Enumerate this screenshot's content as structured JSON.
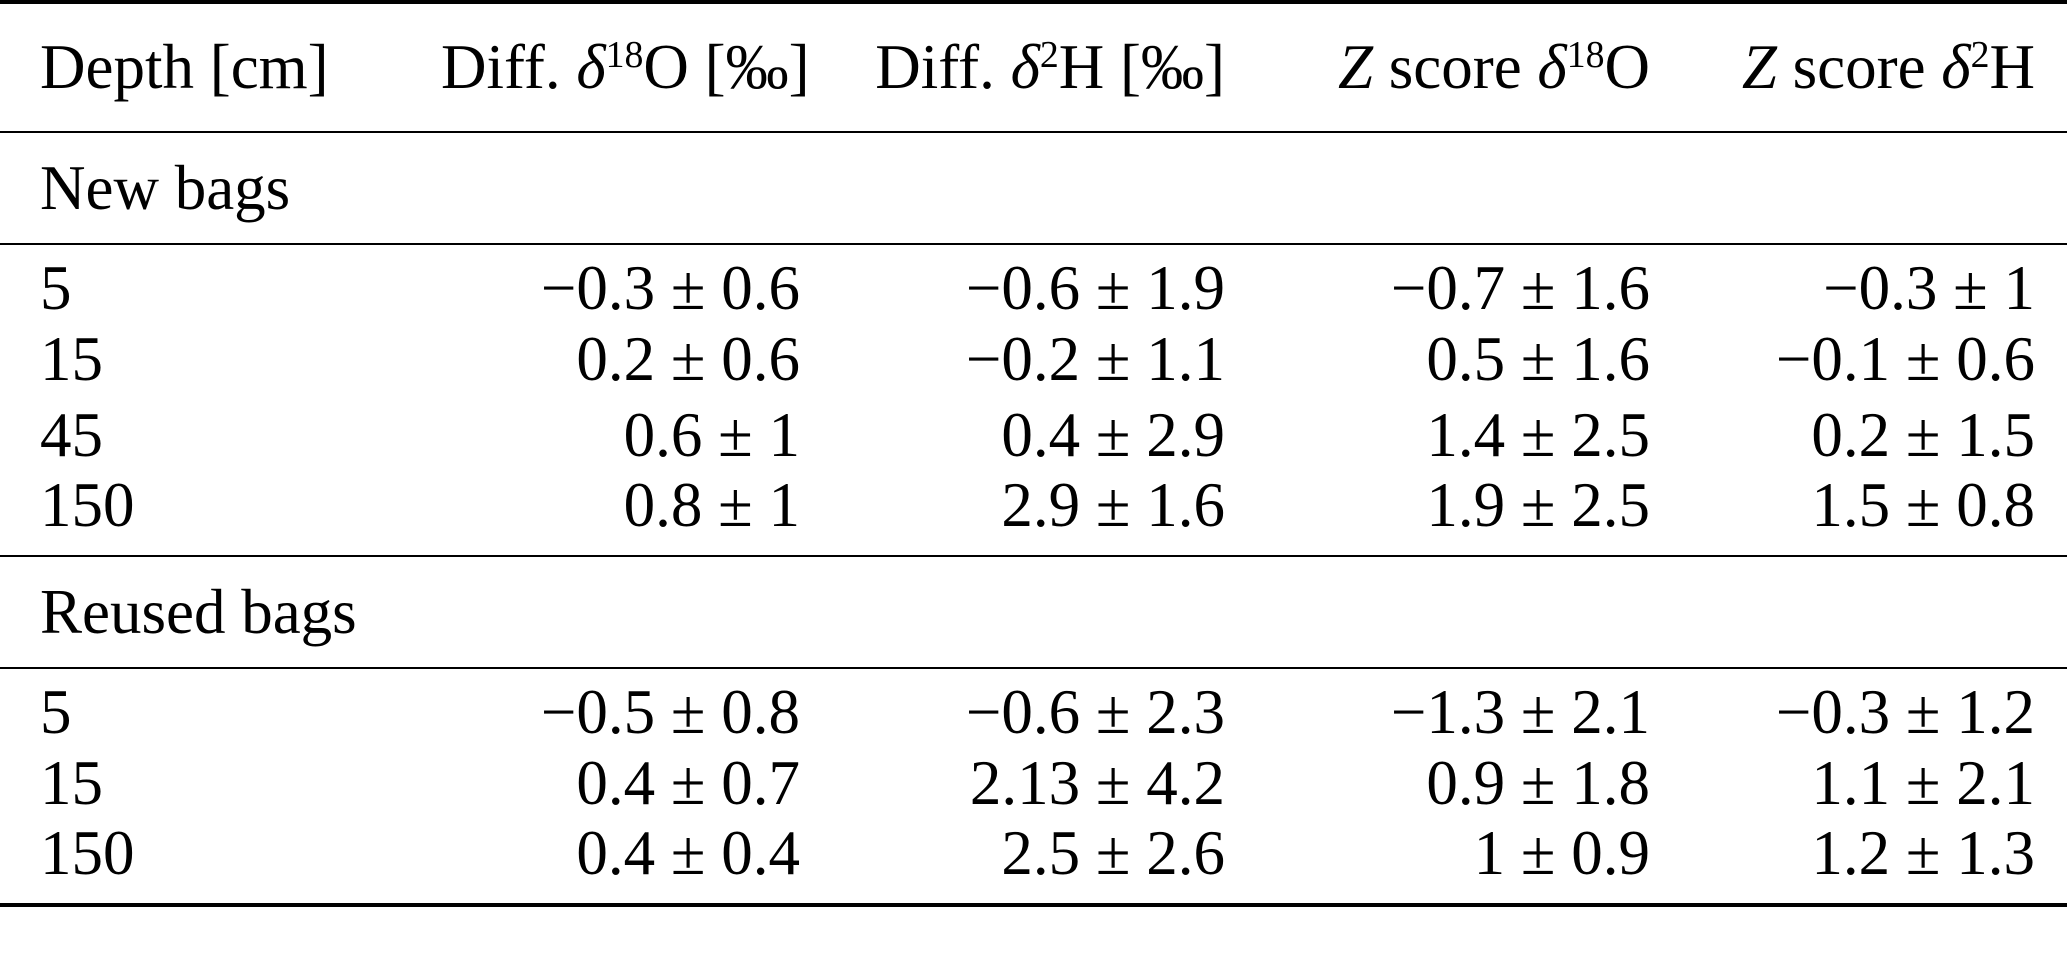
{
  "colors": {
    "background": "#ffffff",
    "text": "#000000",
    "rule": "#000000"
  },
  "table": {
    "columns": {
      "depth": {
        "label_html": "Depth [cm]"
      },
      "diff_d18o": {
        "label_html": "Diff. <span class=\"ital\">δ</span><sup>18</sup>O [‰]"
      },
      "diff_d2h": {
        "label_html": "Diff. <span class=\"ital\">δ</span><sup>2</sup>H [‰]"
      },
      "z_d18o": {
        "label_html": "<span class=\"ital\">Z</span> score <span class=\"ital\">δ</span><sup>18</sup>O"
      },
      "z_d2h": {
        "label_html": "<span class=\"ital\">Z</span> score <span class=\"ital\">δ</span><sup>2</sup>H"
      }
    },
    "sections": [
      {
        "title": "New bags",
        "rows": [
          {
            "depth": "5",
            "diff_d18o": "−0.3 ± 0.6",
            "diff_d2h": "−0.6 ± 1.9",
            "z_d18o": "−0.7 ± 1.6",
            "z_d2h": "−0.3 ± 1"
          },
          {
            "depth": "15",
            "diff_d18o": "0.2 ± 0.6",
            "diff_d2h": "−0.2 ± 1.1",
            "z_d18o": "0.5 ± 1.6",
            "z_d2h": "−0.1 ± 0.6"
          },
          {
            "depth": "45",
            "diff_d18o": "0.6 ± 1",
            "diff_d2h": "0.4 ± 2.9",
            "z_d18o": "1.4 ± 2.5",
            "z_d2h": "0.2 ± 1.5"
          },
          {
            "depth": "150",
            "diff_d18o": "0.8 ± 1",
            "diff_d2h": "2.9 ± 1.6",
            "z_d18o": "1.9 ± 2.5",
            "z_d2h": "1.5 ± 0.8"
          }
        ]
      },
      {
        "title": "Reused bags",
        "rows": [
          {
            "depth": "5",
            "diff_d18o": "−0.5 ± 0.8",
            "diff_d2h": "−0.6 ± 2.3",
            "z_d18o": "−1.3 ± 2.1",
            "z_d2h": "−0.3 ± 1.2"
          },
          {
            "depth": "15",
            "diff_d18o": "0.4 ± 0.7",
            "diff_d2h": "2.13 ± 4.2",
            "z_d18o": "0.9 ± 1.8",
            "z_d2h": "1.1 ± 2.1"
          },
          {
            "depth": "150",
            "diff_d18o": "0.4 ± 0.4",
            "diff_d2h": "2.5 ± 2.6",
            "z_d18o": "1 ± 0.9",
            "z_d2h": "1.2 ± 1.3"
          }
        ]
      }
    ]
  }
}
